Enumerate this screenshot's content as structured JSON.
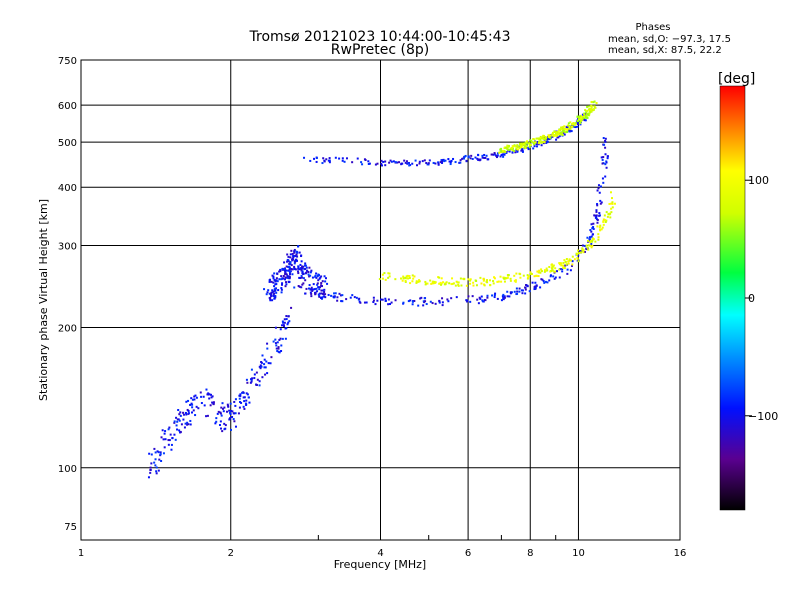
{
  "chart_data": {
    "type": "scatter",
    "title": "Tromsø 20121023 10:44:00-10:45:43",
    "subtitle": "RwPretec (8p)",
    "xlabel": "Frequency [MHz]",
    "ylabel": "Stationary phase Virtual Height [km]",
    "x_scale": "log",
    "y_scale": "log",
    "xlim": [
      1,
      16
    ],
    "ylim": [
      70,
      750
    ],
    "grid": true,
    "xticks": [
      1,
      2,
      4,
      6,
      8,
      10,
      16
    ],
    "xtick_labels": [
      "1",
      "2",
      "4",
      "6",
      "8",
      "10",
      "16"
    ],
    "minor_xticks": [
      3,
      5,
      7,
      9
    ],
    "yticks": [
      75,
      100,
      200,
      300,
      400,
      500,
      600,
      750
    ],
    "ytick_labels": [
      "75",
      "100",
      "200",
      "300",
      "400",
      "500",
      "600",
      "750"
    ],
    "phases_legend": {
      "title": "Phases",
      "line_o": "mean, sd,O: −97.3, 17.5",
      "line_x": "mean, sd,X:  87.5, 22.2"
    },
    "colorbar": {
      "label": "[deg]",
      "range": [
        -180,
        180
      ],
      "ticks": [
        100,
        0,
        -100
      ],
      "tick_labels": [
        "100",
        "0",
        "−100"
      ]
    },
    "traces": [
      {
        "name_hint": "E / low F1 spread",
        "phase": -100,
        "spread": 0.07,
        "points": [
          [
            1.38,
            100
          ],
          [
            1.42,
            106
          ],
          [
            1.48,
            113
          ],
          [
            1.55,
            120
          ],
          [
            1.62,
            128
          ],
          [
            1.68,
            135
          ],
          [
            1.75,
            141
          ],
          [
            1.82,
            136
          ],
          [
            1.9,
            130
          ],
          [
            1.98,
            127
          ],
          [
            2.05,
            132
          ],
          [
            2.15,
            145
          ],
          [
            2.25,
            155
          ],
          [
            2.35,
            168
          ],
          [
            2.45,
            182
          ],
          [
            2.55,
            197
          ],
          [
            2.62,
            210
          ]
        ]
      },
      {
        "name_hint": "F1 cusp",
        "phase": -100,
        "spread": 0.06,
        "points": [
          [
            2.35,
            240
          ],
          [
            2.45,
            245
          ],
          [
            2.55,
            255
          ],
          [
            2.62,
            270
          ],
          [
            2.7,
            285
          ],
          [
            2.8,
            262
          ],
          [
            2.95,
            248
          ],
          [
            3.1,
            242
          ]
        ]
      },
      {
        "name_hint": "F2 O-trace",
        "phase": -100,
        "spread": 0.02,
        "points": [
          [
            2.7,
            242
          ],
          [
            3.0,
            235
          ],
          [
            3.3,
            232
          ],
          [
            3.7,
            229
          ],
          [
            4.0,
            228
          ],
          [
            4.5,
            227
          ],
          [
            5.0,
            227
          ],
          [
            5.5,
            228
          ],
          [
            6.0,
            229
          ],
          [
            6.5,
            231
          ],
          [
            7.0,
            234
          ],
          [
            7.5,
            238
          ],
          [
            8.0,
            243
          ],
          [
            8.5,
            250
          ],
          [
            9.0,
            258
          ],
          [
            9.5,
            268
          ],
          [
            10.0,
            282
          ],
          [
            10.3,
            295
          ],
          [
            10.6,
            318
          ],
          [
            10.9,
            350
          ],
          [
            11.1,
            395
          ],
          [
            11.3,
            460
          ],
          [
            11.4,
            540
          ]
        ]
      },
      {
        "name_hint": "F2 X-trace",
        "phase": 87.5,
        "spread": 0.02,
        "points": [
          [
            4.0,
            258
          ],
          [
            4.5,
            254
          ],
          [
            5.0,
            252
          ],
          [
            5.5,
            251
          ],
          [
            6.0,
            250
          ],
          [
            6.5,
            251
          ],
          [
            7.0,
            253
          ],
          [
            7.5,
            256
          ],
          [
            8.0,
            259
          ],
          [
            8.5,
            263
          ],
          [
            9.0,
            269
          ],
          [
            9.5,
            276
          ],
          [
            10.0,
            285
          ],
          [
            10.5,
            300
          ],
          [
            11.0,
            322
          ],
          [
            11.5,
            350
          ],
          [
            11.8,
            385
          ]
        ]
      },
      {
        "name_hint": "2F O-trace",
        "phase": -100,
        "spread": 0.015,
        "points": [
          [
            2.8,
            458
          ],
          [
            3.5,
            455
          ],
          [
            4.0,
            452
          ],
          [
            4.5,
            451
          ],
          [
            5.0,
            452
          ],
          [
            5.5,
            455
          ],
          [
            6.0,
            460
          ],
          [
            6.5,
            466
          ],
          [
            7.0,
            472
          ],
          [
            7.5,
            480
          ],
          [
            8.0,
            490
          ],
          [
            8.5,
            502
          ],
          [
            9.0,
            515
          ],
          [
            9.5,
            532
          ],
          [
            10.0,
            552
          ],
          [
            10.5,
            580
          ]
        ]
      },
      {
        "name_hint": "2F X-trace",
        "phase": 75,
        "spread": 0.015,
        "points": [
          [
            7.0,
            480
          ],
          [
            7.5,
            488
          ],
          [
            8.0,
            497
          ],
          [
            8.5,
            508
          ],
          [
            9.0,
            520
          ],
          [
            9.5,
            535
          ],
          [
            10.0,
            555
          ],
          [
            10.4,
            575
          ],
          [
            10.8,
            605
          ]
        ]
      }
    ]
  }
}
